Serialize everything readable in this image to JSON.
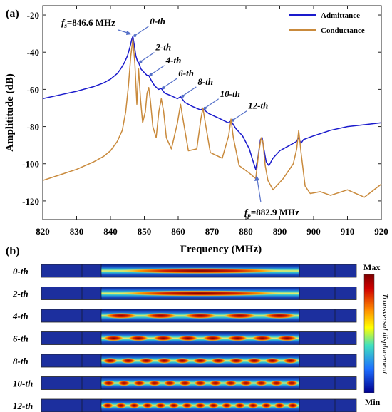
{
  "panel_a": {
    "label": "(a)",
    "fs_label_main": "f",
    "fs_label_sub": "s",
    "fs_label_value": "=846.6 MHz",
    "fp_label_main": "f",
    "fp_label_sub": "p",
    "fp_label_value": "=882.9 MHz",
    "mode_labels": [
      {
        "text": "0-th",
        "x": 846.6,
        "y": -31.5
      },
      {
        "text": "2-th",
        "x": 848.3,
        "y": -45.5
      },
      {
        "text": "4-th",
        "x": 851.3,
        "y": -52.5
      },
      {
        "text": "6-th",
        "x": 855.0,
        "y": -59.5
      },
      {
        "text": "8-th",
        "x": 860.7,
        "y": -64.0
      },
      {
        "text": "10-th",
        "x": 867.3,
        "y": -70.5
      },
      {
        "text": "12-th",
        "x": 875.6,
        "y": -77.0
      }
    ]
  },
  "chart_data": {
    "type": "line",
    "xlabel": "Frequency (MHz)",
    "ylabel": "Amplititude (dB)",
    "xlim": [
      820,
      920
    ],
    "ylim": [
      -130,
      -15
    ],
    "xticks": [
      820,
      830,
      840,
      850,
      860,
      870,
      880,
      890,
      900,
      910,
      920
    ],
    "yticks": [
      -20,
      -40,
      -60,
      -80,
      -100,
      -120
    ],
    "grid": false,
    "legend_position": "top-right",
    "series": [
      {
        "name": "Admittance",
        "color": "#1a1acc",
        "x": [
          820,
          825,
          830,
          835,
          838,
          840,
          842,
          843,
          844,
          845,
          845.8,
          846.3,
          846.6,
          847.0,
          847.5,
          848.0,
          848.3,
          849.0,
          850.0,
          850.8,
          851.3,
          852.0,
          853.0,
          854.2,
          855.0,
          856.0,
          858.0,
          859.8,
          860.7,
          862.0,
          864.0,
          866.5,
          867.3,
          869.0,
          872.0,
          874.8,
          875.6,
          877.0,
          879.0,
          881.0,
          882.0,
          882.9,
          883.6,
          884.3,
          884.8,
          885.3,
          886.0,
          886.8,
          888.0,
          890.0,
          893.0,
          895.0,
          895.5,
          896.3,
          897.0,
          900.0,
          905.0,
          910.0,
          915.0,
          920.0
        ],
        "y": [
          -65,
          -63,
          -61,
          -58.5,
          -56.5,
          -54.5,
          -51.5,
          -49,
          -46,
          -42,
          -37,
          -33,
          -31.5,
          -36,
          -42,
          -45,
          -45.5,
          -49,
          -51,
          -52.5,
          -52.5,
          -55,
          -58,
          -60,
          -59.5,
          -62,
          -63.5,
          -65,
          -64,
          -67,
          -69,
          -71,
          -70.5,
          -73,
          -75.5,
          -78,
          -77,
          -81,
          -85,
          -92,
          -98,
          -103,
          -96,
          -87,
          -86,
          -92,
          -99,
          -101,
          -97,
          -93,
          -90,
          -88,
          -86,
          -89,
          -87,
          -85,
          -82,
          -80,
          -79,
          -78
        ]
      },
      {
        "name": "Conductance",
        "color": "#c98a3c",
        "x": [
          820,
          825,
          830,
          835,
          838,
          840,
          842,
          843.5,
          844.5,
          845.3,
          846.0,
          846.6,
          847.2,
          847.8,
          848.3,
          848.9,
          849.5,
          850.3,
          850.8,
          851.3,
          851.8,
          852.5,
          853.5,
          854.3,
          855.0,
          855.7,
          856.5,
          858.0,
          859.8,
          860.7,
          861.6,
          863.0,
          865.5,
          866.7,
          867.3,
          868.0,
          869.5,
          873.0,
          874.9,
          875.6,
          876.3,
          878.0,
          881.0,
          882.9,
          883.8,
          884.5,
          885.0,
          885.7,
          886.5,
          888.0,
          891.0,
          894.0,
          895.0,
          895.6,
          896.3,
          897.5,
          899.0,
          902.0,
          905.0,
          910.0,
          915.0,
          920.0
        ],
        "y": [
          -109,
          -106,
          -103,
          -99,
          -96,
          -93,
          -88,
          -82,
          -72,
          -58,
          -42,
          -33,
          -46,
          -68,
          -49,
          -66,
          -78,
          -72,
          -62,
          -59,
          -66,
          -80,
          -86,
          -72,
          -65,
          -72,
          -86,
          -92,
          -78,
          -68,
          -78,
          -93,
          -92,
          -76,
          -70,
          -78,
          -94,
          -97,
          -85,
          -76,
          -86,
          -101,
          -105,
          -108,
          -94,
          -86,
          -88,
          -101,
          -109,
          -114,
          -108,
          -100,
          -92,
          -82,
          -94,
          -112,
          -116,
          -115,
          -117,
          -114,
          -118,
          -111
        ]
      }
    ]
  },
  "panel_b": {
    "label": "(b)",
    "rows": [
      "0-th",
      "2-th",
      "4-th",
      "6-th",
      "8-th",
      "10-th",
      "12-th"
    ],
    "colorbar": {
      "max_label": "Max",
      "min_label": "Min",
      "title": "Transversal displacement"
    }
  }
}
